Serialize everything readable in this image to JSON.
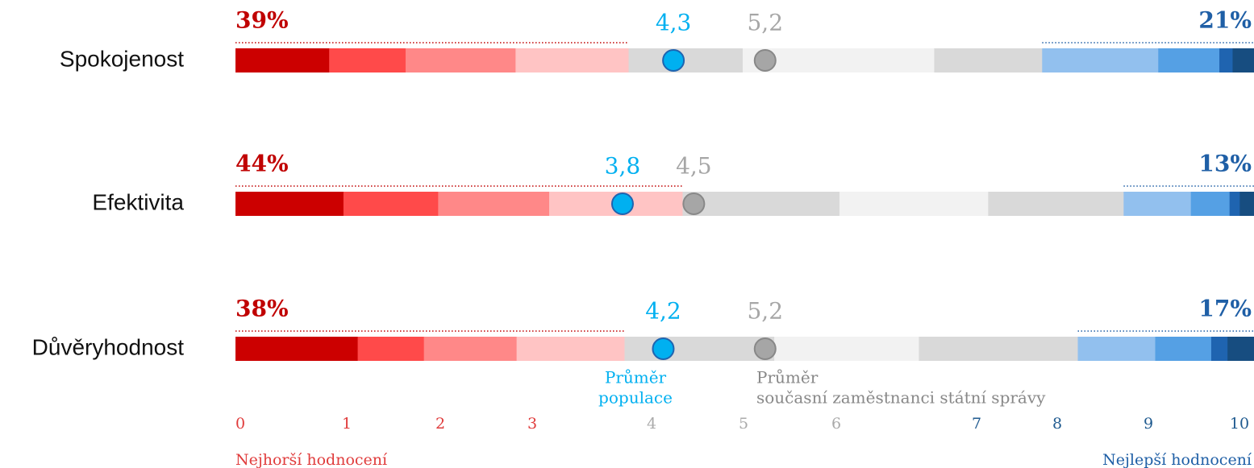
{
  "chart_data": {
    "type": "stacked_bar_100",
    "categories": [
      "Spokojenost",
      "Efektivita",
      "Důvěryhodnost"
    ],
    "series": [
      {
        "name": "0",
        "color": "#cc0000",
        "values": [
          9.2,
          10.6,
          12.0
        ]
      },
      {
        "name": "1",
        "color": "#ff4a4a",
        "values": [
          7.5,
          9.3,
          6.5
        ]
      },
      {
        "name": "2",
        "color": "#ff8888",
        "values": [
          10.8,
          10.9,
          9.1
        ]
      },
      {
        "name": "3",
        "color": "#ffc4c4",
        "values": [
          11.1,
          13.1,
          10.6
        ]
      },
      {
        "name": "4",
        "color": "#d9d9d9",
        "values": [
          11.2,
          15.4,
          14.7
        ]
      },
      {
        "name": "5",
        "color": "#f2f2f2",
        "values": [
          18.8,
          14.6,
          14.2
        ]
      },
      {
        "name": "6",
        "color": "#d9d9d9",
        "values": [
          10.6,
          13.3,
          15.6
        ]
      },
      {
        "name": "7",
        "color": "#92c0ee",
        "values": [
          11.4,
          6.6,
          7.6
        ]
      },
      {
        "name": "8",
        "color": "#55a0e4",
        "values": [
          6.0,
          3.8,
          5.5
        ]
      },
      {
        "name": "9",
        "color": "#1f64b0",
        "values": [
          1.3,
          1.0,
          1.6
        ]
      },
      {
        "name": "10",
        "color": "#174d80",
        "values": [
          2.1,
          1.4,
          2.6
        ]
      }
    ],
    "tick_colors": [
      "#e03c3c",
      "#e03c3c",
      "#e03c3c",
      "#e03c3c",
      "#aaaaaa",
      "#aaaaaa",
      "#aaaaaa",
      "#1f5a8f",
      "#1f5a8f",
      "#1f5a8f",
      "#1f5a8f"
    ],
    "low_share": {
      "color": "#c00000",
      "values": [
        39,
        44,
        38
      ],
      "value_labels": [
        "39%",
        "44%",
        "38%"
      ]
    },
    "high_share": {
      "color": "#1f5fa6",
      "values": [
        21,
        13,
        17
      ],
      "value_labels": [
        "21%",
        "13%",
        "17%"
      ]
    },
    "population_mean": {
      "label_lines": [
        "Průměr",
        "populace"
      ],
      "color": "#00b0f0",
      "values": [
        4.3,
        3.8,
        4.2
      ],
      "value_labels": [
        "4,3",
        "3,8",
        "4,2"
      ]
    },
    "civil_servants_mean": {
      "label_lines": [
        "Průměr",
        "současní zaměstnanci státní správy"
      ],
      "color": "#a6a6a6",
      "values": [
        5.2,
        4.5,
        5.2
      ],
      "value_labels": [
        "5,2",
        "4,5",
        "5,2"
      ]
    },
    "xlim": [
      0,
      10
    ],
    "left_end_label": "Nejhorší hodnocení",
    "right_end_label": "Nejlepší hodnocení"
  }
}
